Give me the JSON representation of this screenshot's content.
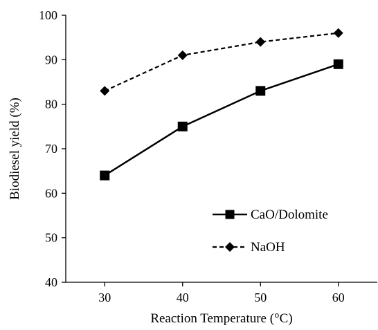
{
  "chart_data": {
    "type": "line",
    "title": "",
    "xlabel": "Reaction Temperature (°C)",
    "ylabel": "Biodiesel  yield (%)",
    "x": [
      30,
      40,
      50,
      60
    ],
    "x_ticks": [
      "30",
      "40",
      "50",
      "60"
    ],
    "y_ticks": [
      "40",
      "50",
      "60",
      "70",
      "80",
      "90",
      "100"
    ],
    "xlim": [
      25,
      65
    ],
    "ylim": [
      40,
      100
    ],
    "grid": false,
    "legend_position": "bottom-right",
    "series": [
      {
        "name": "CaO/Dolomite",
        "values": [
          64,
          75,
          83,
          89
        ],
        "line_style": "solid",
        "marker": "square",
        "color": "#000000"
      },
      {
        "name": "NaOH",
        "values": [
          83,
          91,
          94,
          96
        ],
        "line_style": "dashed",
        "marker": "diamond",
        "color": "#000000"
      }
    ]
  }
}
